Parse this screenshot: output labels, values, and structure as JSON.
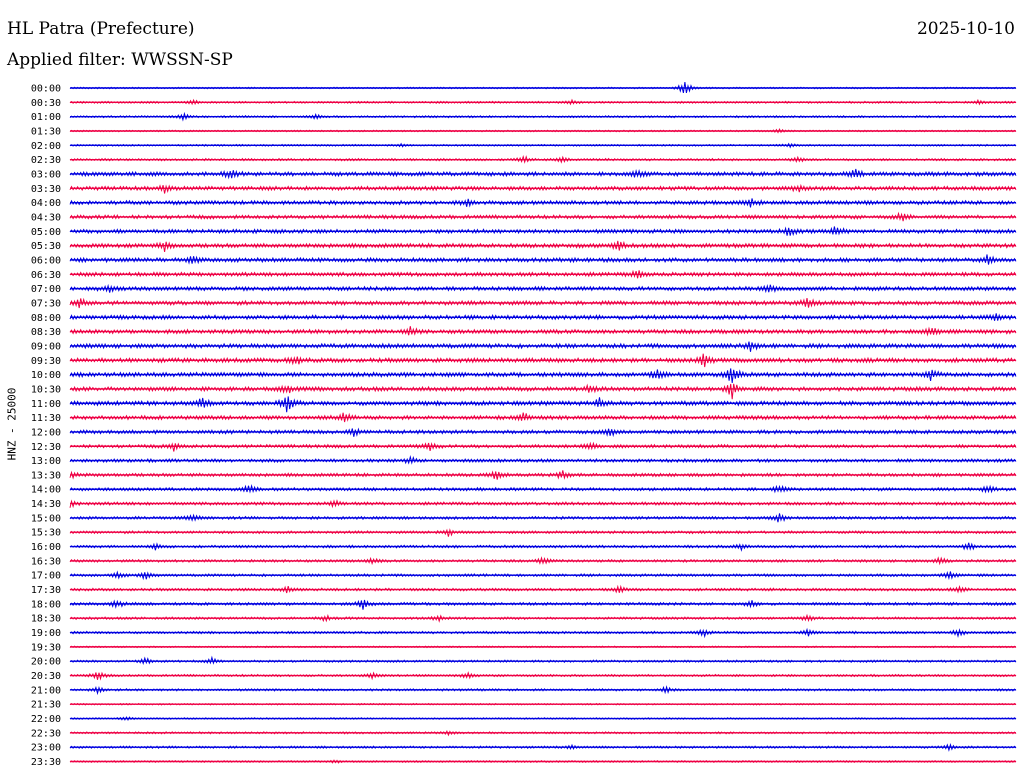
{
  "header": {
    "station": "HL Patra (Prefecture)",
    "date": "2025-10-10",
    "filter": "Applied filter: WWSSN-SP"
  },
  "chart_data": {
    "type": "line",
    "title": "HL Patra (Prefecture)",
    "ylabel": "HNZ - 25000",
    "xlabel": "",
    "traces_per_row": "30 min",
    "colors": [
      "#0000e0",
      "#ee0044"
    ],
    "rows": [
      {
        "time": "00:00",
        "activity": 0.2,
        "events": [
          [
            0.65,
            1.6
          ]
        ]
      },
      {
        "time": "00:30",
        "activity": 0.3,
        "events": [
          [
            0.13,
            0.5
          ],
          [
            0.53,
            0.4
          ],
          [
            0.96,
            0.4
          ]
        ]
      },
      {
        "time": "01:00",
        "activity": 0.3,
        "events": [
          [
            0.12,
            0.6
          ],
          [
            0.26,
            0.5
          ]
        ]
      },
      {
        "time": "01:30",
        "activity": 0.2,
        "events": [
          [
            0.75,
            0.3
          ]
        ]
      },
      {
        "time": "02:00",
        "activity": 0.25,
        "events": [
          [
            0.35,
            0.3
          ],
          [
            0.76,
            0.4
          ]
        ]
      },
      {
        "time": "02:30",
        "activity": 0.35,
        "events": [
          [
            0.48,
            0.7
          ],
          [
            0.52,
            0.5
          ],
          [
            0.77,
            0.5
          ]
        ]
      },
      {
        "time": "03:00",
        "activity": 0.8,
        "events": [
          [
            0.17,
            0.9
          ],
          [
            0.6,
            0.8
          ],
          [
            0.83,
            0.9
          ]
        ]
      },
      {
        "time": "03:30",
        "activity": 0.75,
        "events": [
          [
            0.1,
            0.8
          ],
          [
            0.77,
            0.7
          ]
        ]
      },
      {
        "time": "04:00",
        "activity": 0.75,
        "events": [
          [
            0.42,
            0.7
          ],
          [
            0.72,
            0.8
          ]
        ]
      },
      {
        "time": "04:30",
        "activity": 0.7,
        "events": [
          [
            0.88,
            0.9
          ]
        ]
      },
      {
        "time": "05:00",
        "activity": 0.75,
        "events": [
          [
            0.76,
            1.0
          ],
          [
            0.81,
            1.1
          ]
        ]
      },
      {
        "time": "05:30",
        "activity": 0.8,
        "events": [
          [
            0.1,
            0.9
          ],
          [
            0.58,
            1.0
          ]
        ]
      },
      {
        "time": "06:00",
        "activity": 0.8,
        "events": [
          [
            0.13,
            0.8
          ],
          [
            0.97,
            0.9
          ]
        ]
      },
      {
        "time": "06:30",
        "activity": 0.75,
        "events": [
          [
            0.6,
            0.8
          ]
        ]
      },
      {
        "time": "07:00",
        "activity": 0.75,
        "events": [
          [
            0.04,
            0.7
          ],
          [
            0.74,
            0.8
          ]
        ]
      },
      {
        "time": "07:30",
        "activity": 0.8,
        "events": [
          [
            0.01,
            0.9
          ],
          [
            0.78,
            1.0
          ]
        ]
      },
      {
        "time": "08:00",
        "activity": 0.8,
        "events": [
          [
            0.98,
            0.9
          ]
        ]
      },
      {
        "time": "08:30",
        "activity": 0.8,
        "events": [
          [
            0.36,
            0.9
          ],
          [
            0.91,
            1.0
          ]
        ]
      },
      {
        "time": "09:00",
        "activity": 0.85,
        "events": [
          [
            0.72,
            1.0
          ]
        ]
      },
      {
        "time": "09:30",
        "activity": 0.85,
        "events": [
          [
            0.24,
            0.9
          ],
          [
            0.67,
            1.4
          ]
        ]
      },
      {
        "time": "10:00",
        "activity": 0.85,
        "events": [
          [
            0.62,
            1.0
          ],
          [
            0.7,
            2.2
          ],
          [
            0.91,
            1.0
          ]
        ]
      },
      {
        "time": "10:30",
        "activity": 0.8,
        "events": [
          [
            0.23,
            0.9
          ],
          [
            0.55,
            0.9
          ],
          [
            0.7,
            1.8
          ]
        ]
      },
      {
        "time": "11:00",
        "activity": 0.85,
        "events": [
          [
            0.14,
            1.3
          ],
          [
            0.23,
            2.0
          ],
          [
            0.56,
            0.9
          ]
        ]
      },
      {
        "time": "11:30",
        "activity": 0.75,
        "events": [
          [
            0.29,
            1.0
          ],
          [
            0.48,
            0.9
          ]
        ]
      },
      {
        "time": "12:00",
        "activity": 0.7,
        "events": [
          [
            0.3,
            0.8
          ],
          [
            0.57,
            0.9
          ]
        ]
      },
      {
        "time": "12:30",
        "activity": 0.6,
        "events": [
          [
            0.11,
            0.8
          ],
          [
            0.38,
            1.0
          ],
          [
            0.55,
            0.8
          ]
        ]
      },
      {
        "time": "13:00",
        "activity": 0.6,
        "events": [
          [
            0.36,
            0.7
          ]
        ]
      },
      {
        "time": "13:30",
        "activity": 0.6,
        "events": [
          [
            0.0,
            0.8
          ],
          [
            0.45,
            1.0
          ],
          [
            0.52,
            0.8
          ]
        ]
      },
      {
        "time": "14:00",
        "activity": 0.55,
        "events": [
          [
            0.19,
            0.9
          ],
          [
            0.75,
            0.9
          ],
          [
            0.97,
            0.7
          ]
        ]
      },
      {
        "time": "14:30",
        "activity": 0.55,
        "events": [
          [
            0.0,
            0.7
          ],
          [
            0.28,
            0.6
          ]
        ]
      },
      {
        "time": "15:00",
        "activity": 0.5,
        "events": [
          [
            0.13,
            0.8
          ],
          [
            0.75,
            0.9
          ]
        ]
      },
      {
        "time": "15:30",
        "activity": 0.45,
        "events": [
          [
            0.4,
            0.8
          ]
        ]
      },
      {
        "time": "16:00",
        "activity": 0.45,
        "events": [
          [
            0.09,
            0.6
          ],
          [
            0.71,
            0.6
          ],
          [
            0.95,
            0.8
          ]
        ]
      },
      {
        "time": "16:30",
        "activity": 0.45,
        "events": [
          [
            0.32,
            0.7
          ],
          [
            0.5,
            0.6
          ],
          [
            0.92,
            0.8
          ]
        ]
      },
      {
        "time": "17:00",
        "activity": 0.45,
        "events": [
          [
            0.05,
            0.7
          ],
          [
            0.08,
            0.7
          ],
          [
            0.93,
            0.7
          ]
        ]
      },
      {
        "time": "17:30",
        "activity": 0.45,
        "events": [
          [
            0.23,
            0.6
          ],
          [
            0.58,
            0.6
          ],
          [
            0.94,
            0.7
          ]
        ]
      },
      {
        "time": "18:00",
        "activity": 0.5,
        "events": [
          [
            0.05,
            0.8
          ],
          [
            0.31,
            1.0
          ],
          [
            0.72,
            0.6
          ]
        ]
      },
      {
        "time": "18:30",
        "activity": 0.4,
        "events": [
          [
            0.27,
            0.6
          ],
          [
            0.39,
            0.6
          ],
          [
            0.78,
            0.6
          ]
        ]
      },
      {
        "time": "19:00",
        "activity": 0.4,
        "events": [
          [
            0.67,
            0.7
          ],
          [
            0.78,
            0.8
          ],
          [
            0.94,
            0.8
          ]
        ]
      },
      {
        "time": "19:30",
        "activity": 0.2,
        "events": []
      },
      {
        "time": "20:00",
        "activity": 0.35,
        "events": [
          [
            0.08,
            0.6
          ],
          [
            0.15,
            0.6
          ]
        ]
      },
      {
        "time": "20:30",
        "activity": 0.35,
        "events": [
          [
            0.03,
            0.9
          ],
          [
            0.32,
            0.6
          ],
          [
            0.42,
            0.6
          ]
        ]
      },
      {
        "time": "21:00",
        "activity": 0.35,
        "events": [
          [
            0.03,
            0.7
          ],
          [
            0.63,
            0.6
          ]
        ]
      },
      {
        "time": "21:30",
        "activity": 0.2,
        "events": []
      },
      {
        "time": "22:00",
        "activity": 0.2,
        "events": [
          [
            0.06,
            0.4
          ]
        ]
      },
      {
        "time": "22:30",
        "activity": 0.3,
        "events": [
          [
            0.4,
            0.4
          ]
        ]
      },
      {
        "time": "23:00",
        "activity": 0.35,
        "events": [
          [
            0.53,
            0.4
          ],
          [
            0.93,
            0.6
          ]
        ]
      },
      {
        "time": "23:30",
        "activity": 0.25,
        "events": [
          [
            0.28,
            0.3
          ]
        ]
      }
    ]
  }
}
